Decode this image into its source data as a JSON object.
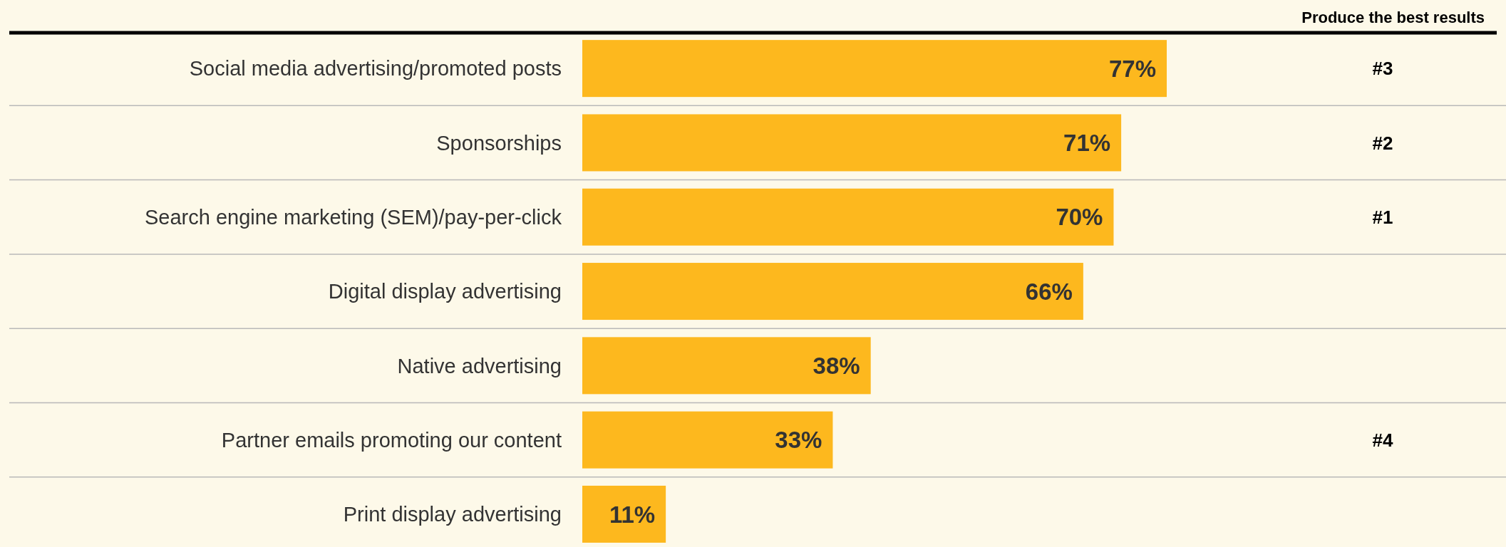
{
  "chart_data": {
    "type": "bar",
    "orientation": "horizontal",
    "categories": [
      "Social media advertising/promoted posts",
      "Sponsorships",
      "Search engine marketing (SEM)/pay-per-click",
      "Digital display advertising",
      "Native advertising",
      "Partner emails promoting our content",
      "Print display advertising"
    ],
    "values": [
      77,
      71,
      70,
      66,
      38,
      33,
      11
    ],
    "value_labels": [
      "77%",
      "71%",
      "70%",
      "66%",
      "38%",
      "33%",
      "11%"
    ],
    "color": "#fdb81e",
    "y2_categories": [
      "#3",
      "#2",
      "#1",
      null,
      null,
      "#4",
      null
    ],
    "annotations": [
      "Produce the best results"
    ]
  }
}
